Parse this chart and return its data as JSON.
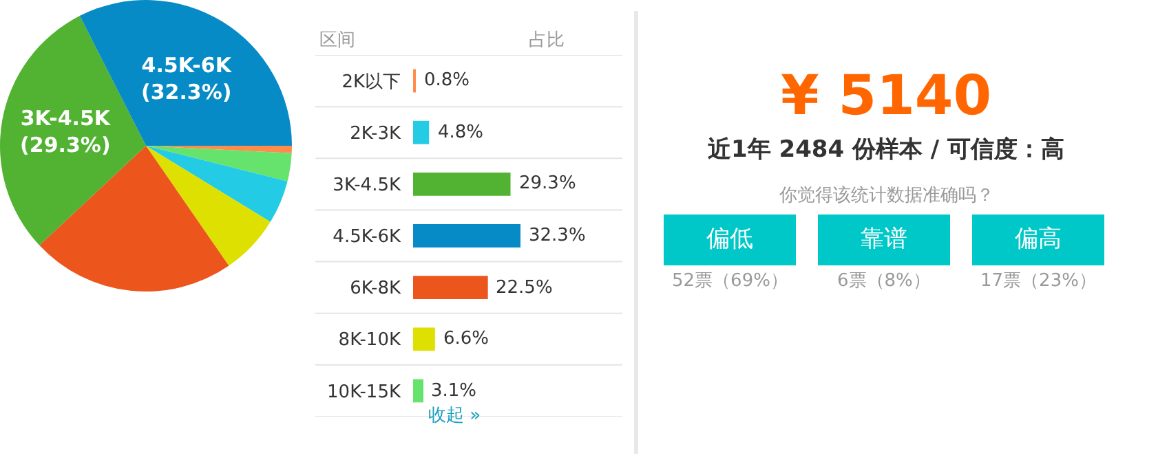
{
  "chart_data": [
    {
      "type": "pie",
      "categories": [
        null,
        null,
        null,
        null,
        null,
        "3K-4.5K",
        "4.5K-6K"
      ],
      "values": [
        0.8,
        3.1,
        4.8,
        6.6,
        22.5,
        29.3,
        32.3
      ],
      "colors": [
        "#ff8c4a",
        "#66e36d",
        "#23cce4",
        "#dde000",
        "#ec561d",
        "#52b232",
        "#068bc6"
      ],
      "value_labels": [
        null,
        null,
        null,
        null,
        null,
        "(29.3%)",
        "(32.3%)"
      ]
    },
    {
      "type": "bar",
      "orientation": "horizontal",
      "categories": [
        "2K以下",
        "2K-3K",
        "3K-4.5K",
        "4.5K-6K",
        "6K-8K",
        "8K-10K",
        "10K-15K"
      ],
      "values": [
        0.8,
        4.8,
        29.3,
        32.3,
        22.5,
        6.6,
        3.1
      ],
      "colors": [
        "#ff8c4a",
        "#23cce4",
        "#52b232",
        "#068bc6",
        "#ec561d",
        "#dde000",
        "#66e36d"
      ],
      "value_labels": [
        "0.8%",
        "4.8%",
        "29.3%",
        "32.3%",
        "22.5%",
        "6.6%",
        "3.1%"
      ],
      "annotations": [
        "区间",
        "占比",
        "收起 »"
      ]
    },
    {
      "type": "other",
      "title": "¥ 5140",
      "subtitle": "近1年 2484 份样本 / 可信度：高",
      "annotations": [
        "你觉得该统计数据准确吗？"
      ],
      "categories": [
        "偏低",
        "靠谱",
        "偏高"
      ],
      "values": [
        52,
        6,
        17
      ],
      "value_labels": [
        "52票（69%）",
        "6票（8%）",
        "17票（23%）"
      ],
      "color": "#00c8c8"
    }
  ]
}
